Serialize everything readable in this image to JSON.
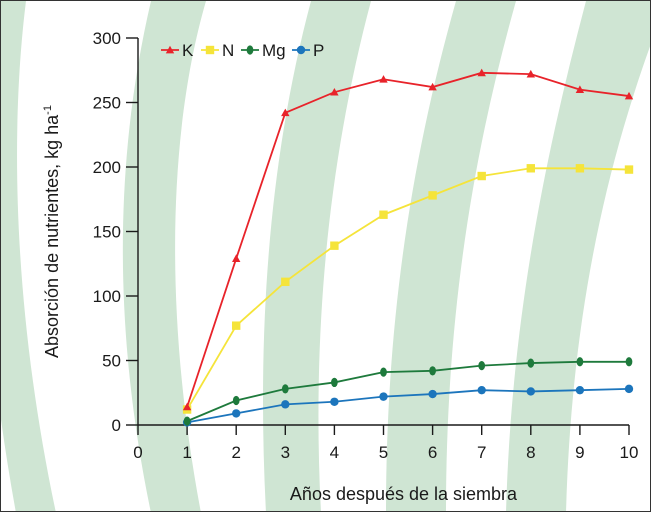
{
  "chart_data": {
    "type": "line",
    "title": "",
    "xlabel": "Años después de la siembra",
    "ylabel": "Absorción de nutrientes, kg ha",
    "ylabel_superscript": "-1",
    "xlim": [
      0,
      10
    ],
    "ylim": [
      0,
      300
    ],
    "xticks": [
      "0",
      "1",
      "2",
      "3",
      "4",
      "5",
      "6",
      "7",
      "8",
      "9",
      "10"
    ],
    "yticks": [
      "0",
      "50",
      "100",
      "150",
      "200",
      "250",
      "300"
    ],
    "grid": false,
    "legend_position": "top-left",
    "x": [
      1,
      2,
      3,
      4,
      5,
      6,
      7,
      8,
      9,
      10
    ],
    "series": [
      {
        "name": "K",
        "color": "#e8232a",
        "marker": "triangle",
        "values": [
          14,
          129,
          242,
          258,
          268,
          262,
          273,
          272,
          260,
          255
        ]
      },
      {
        "name": "N",
        "color": "#f5e43a",
        "marker": "square",
        "values": [
          12,
          77,
          111,
          139,
          163,
          178,
          193,
          199,
          199,
          198
        ]
      },
      {
        "name": "Mg",
        "color": "#1e7a3c",
        "marker": "diamond",
        "values": [
          3,
          19,
          28,
          33,
          41,
          42,
          46,
          48,
          49,
          49
        ]
      },
      {
        "name": "P",
        "color": "#1c75bc",
        "marker": "circle",
        "values": [
          2,
          9,
          16,
          18,
          22,
          24,
          27,
          26,
          27,
          28
        ]
      }
    ],
    "background_colors": {
      "stripe": "#cfe5d3",
      "panel": "#ffffff"
    }
  }
}
